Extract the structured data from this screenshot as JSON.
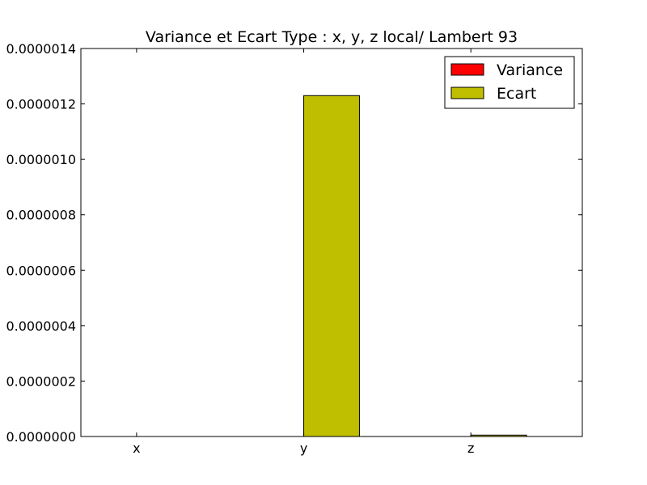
{
  "chart_data": {
    "type": "bar",
    "title": "Variance et Ecart Type : x, y, z local/ Lambert 93",
    "xlabel": "",
    "ylabel": "",
    "categories": [
      "x",
      "y",
      "z"
    ],
    "series": [
      {
        "name": "Variance",
        "color": "#ff0000",
        "values": [
          0.0,
          0.0,
          0.0
        ]
      },
      {
        "name": "Ecart",
        "color": "#bfbf00",
        "values": [
          0.0,
          1.23e-06,
          5e-09
        ]
      }
    ],
    "ylim": [
      0,
      1.4e-06
    ],
    "yticks": [
      0,
      2e-07,
      4e-07,
      6e-07,
      8e-07,
      1e-06,
      1.2e-06,
      1.4e-06
    ],
    "ytick_labels": [
      "0.0000000",
      "0.0000002",
      "0.0000004",
      "0.0000006",
      "0.0000008",
      "0.0000010",
      "0.0000012",
      "0.0000014"
    ],
    "grid": false,
    "legend_position": "top-right"
  }
}
